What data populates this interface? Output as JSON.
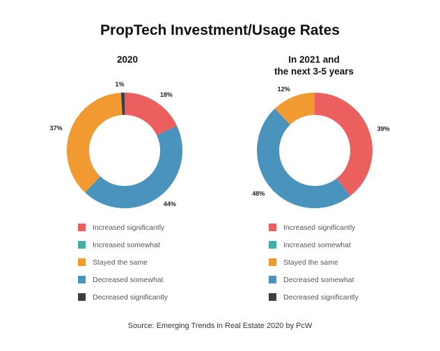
{
  "title": "PropTech Investment/Usage Rates",
  "source": "Source: Emerging Trends in Real Estate 2020 by PcW",
  "legend": [
    {
      "label": "Increased significantly",
      "color": "#EB5F5F"
    },
    {
      "label": "Increased somewhat",
      "color": "#43AEA8"
    },
    {
      "label": "Stayed the same",
      "color": "#F19A32"
    },
    {
      "label": "Decreased somewhat",
      "color": "#4A93BC"
    },
    {
      "label": "Decreased significantly",
      "color": "#3A3E45"
    }
  ],
  "chart_data": [
    {
      "type": "pie",
      "donut": true,
      "title": "2020",
      "series": [
        {
          "name": "Increased significantly",
          "value": 18,
          "label": "18%"
        },
        {
          "name": "Decreased somewhat",
          "value": 44,
          "label": "44%"
        },
        {
          "name": "Stayed the same",
          "value": 37,
          "label": "37%"
        },
        {
          "name": "Decreased significantly",
          "value": 1,
          "label": "1%"
        }
      ]
    },
    {
      "type": "pie",
      "donut": true,
      "title": "In 2021 and the next 3-5 years",
      "series": [
        {
          "name": "Increased significantly",
          "value": 39,
          "label": "39%"
        },
        {
          "name": "Decreased somewhat",
          "value": 48,
          "label": "48%"
        },
        {
          "name": "Stayed the same",
          "value": 12,
          "label": "12%"
        }
      ]
    }
  ]
}
